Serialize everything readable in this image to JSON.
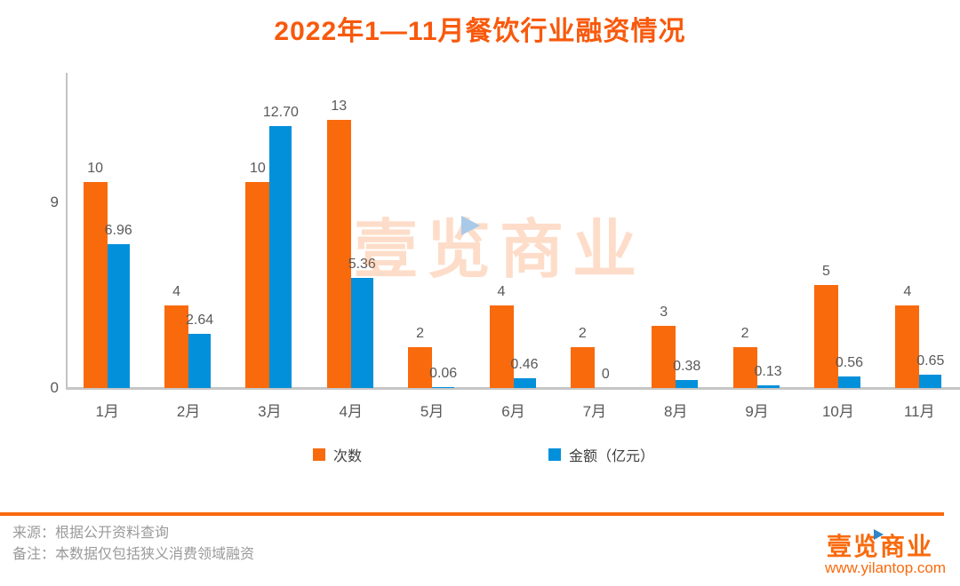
{
  "title": {
    "text": "2022年1—11月餐饮行业融资情况",
    "color": "#f8590c"
  },
  "chart_data": {
    "type": "bar",
    "title": "2022年1—11月餐饮行业融资情况",
    "categories": [
      "1月",
      "2月",
      "3月",
      "4月",
      "5月",
      "6月",
      "7月",
      "8月",
      "9月",
      "10月",
      "11月"
    ],
    "series": [
      {
        "name": "次数",
        "color": "#f96a0d",
        "values": [
          10,
          4,
          10,
          13,
          2,
          4,
          2,
          3,
          2,
          5,
          4
        ],
        "labels": [
          "10",
          "4",
          "10",
          "13",
          "2",
          "4",
          "2",
          "3",
          "2",
          "5",
          "4"
        ]
      },
      {
        "name": "金额（亿元）",
        "color": "#0290db",
        "values": [
          6.96,
          2.64,
          12.7,
          5.36,
          0.06,
          0.46,
          0,
          0.38,
          0.13,
          0.56,
          0.65
        ],
        "labels": [
          "6.96",
          "2.64",
          "12.70",
          "5.36",
          "0.06",
          "0.46",
          "0",
          "0.38",
          "0.13",
          "0.56",
          "0.65"
        ]
      }
    ],
    "xlabel": "",
    "ylabel": "",
    "ylim": [
      0,
      15.3
    ],
    "yticks": [
      {
        "value": 9,
        "label": "9"
      },
      {
        "value": 0,
        "label": "0"
      }
    ],
    "grid": false,
    "legend_position": "bottom"
  },
  "watermark": {
    "text": "壹览商业",
    "color": "#f96a0d",
    "play_icon": "play-triangle"
  },
  "footer": {
    "divider_color": "#f96a0d",
    "source": "来源：根据公开资料查询",
    "note": "备注：本数据仅包括狭义消费领域融资"
  },
  "brand": {
    "name": "壹览商业",
    "url": "www.yilantop.com",
    "color": "#f96a0d"
  }
}
